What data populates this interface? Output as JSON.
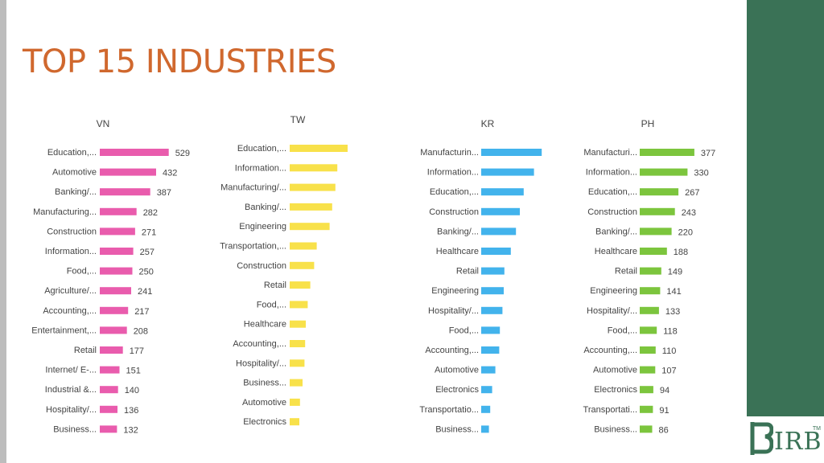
{
  "title": "TOP 15 INDUSTRIES",
  "colors": {
    "title": "#d0682e",
    "VN": "#e95cad",
    "TW": "#f8e14a",
    "KR": "#42b3ec",
    "PH": "#7cc53d",
    "side_panel": "#3a7256"
  },
  "logo": {
    "text": "IRB",
    "tm": "TM"
  },
  "chart_data": [
    {
      "type": "bar",
      "orientation": "horizontal",
      "title": "VN",
      "xlim": [
        0,
        560
      ],
      "categories": [
        "Education,...",
        "Automotive",
        "Banking/...",
        "Manufacturing...",
        "Construction",
        "Information...",
        "Food,...",
        "Agriculture/...",
        "Accounting,...",
        "Entertainment,...",
        "Retail",
        "Internet/ E-...",
        "Industrial &...",
        "Hospitality/...",
        "Business..."
      ],
      "values": [
        529,
        432,
        387,
        282,
        271,
        257,
        250,
        241,
        217,
        208,
        177,
        151,
        140,
        136,
        132
      ],
      "data_labels": true
    },
    {
      "type": "bar",
      "orientation": "horizontal",
      "title": "TW",
      "xlim": [
        0,
        560
      ],
      "categories": [
        "Education,...",
        "Information...",
        "Manufacturing/...",
        "Banking/...",
        "Engineering",
        "Transportation,...",
        "Construction",
        "Retail",
        "Food,...",
        "Healthcare",
        "Accounting,...",
        "Hospitality/...",
        "Business...",
        "Automotive",
        "Electronics"
      ],
      "values": [
        450,
        370,
        355,
        330,
        310,
        210,
        190,
        160,
        140,
        125,
        120,
        115,
        100,
        80,
        75
      ],
      "data_labels": false
    },
    {
      "type": "bar",
      "orientation": "horizontal",
      "title": "KR",
      "xlim": [
        0,
        560
      ],
      "categories": [
        "Manufacturin...",
        "Information...",
        "Education,...",
        "Construction",
        "Banking/...",
        "Healthcare",
        "Retail",
        "Engineering",
        "Hospitality/...",
        "Food,...",
        "Accounting,...",
        "Automotive",
        "Electronics",
        "Transportatio...",
        "Business..."
      ],
      "values": [
        470,
        410,
        330,
        300,
        270,
        230,
        180,
        175,
        165,
        145,
        140,
        110,
        85,
        70,
        60
      ],
      "data_labels": false
    },
    {
      "type": "bar",
      "orientation": "horizontal",
      "title": "PH",
      "xlim": [
        0,
        560
      ],
      "categories": [
        "Manufacturi...",
        "Information...",
        "Education,...",
        "Construction",
        "Banking/...",
        "Healthcare",
        "Retail",
        "Engineering",
        "Hospitality/...",
        "Food,...",
        "Accounting,...",
        "Automotive",
        "Electronics",
        "Transportati...",
        "Business..."
      ],
      "values": [
        377,
        330,
        267,
        243,
        220,
        188,
        149,
        141,
        133,
        118,
        110,
        107,
        94,
        91,
        86
      ],
      "data_labels": true
    }
  ]
}
